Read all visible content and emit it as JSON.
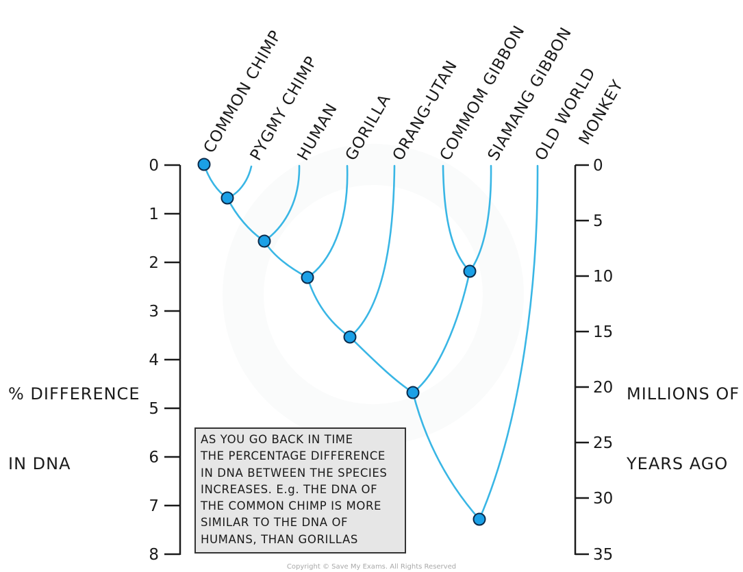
{
  "colors": {
    "branch": "#39b6e5",
    "node_fill": "#1ba0e6",
    "node_stroke": "#0b2a4a",
    "axis": "#1a1a1a",
    "note_bg": "#e6e6e6"
  },
  "species": [
    "COMMON CHIMP",
    "PYGMY CHIMP",
    "HUMAN",
    "GORILLA",
    "ORANG-UTAN",
    "COMMOM GIBBON",
    "SIAMANG GIBBON",
    "OLD WORLD",
    "MONKEY"
  ],
  "left_axis": {
    "label_line1": "% DIFFERENCE",
    "label_line2": "IN DNA",
    "ticks": [
      "0",
      "1",
      "2",
      "3",
      "4",
      "5",
      "6",
      "7",
      "8"
    ]
  },
  "right_axis": {
    "label_line1": "MILLIONS OF",
    "label_line2": "YEARS AGO",
    "ticks": [
      "0",
      "5",
      "10",
      "15",
      "20",
      "25",
      "30",
      "35"
    ]
  },
  "note": {
    "lines": [
      "AS YOU GO BACK IN TIME",
      "THE PERCENTAGE DIFFERENCE",
      "IN DNA BETWEEN THE SPECIES",
      "INCREASES. E.g. THE DNA OF",
      "THE COMMON CHIMP IS MORE",
      "SIMILAR TO THE DNA OF",
      "HUMANS, THAN GORILLAS"
    ]
  },
  "copyright": "Copyright © Save My Exams. All Rights Reserved"
}
